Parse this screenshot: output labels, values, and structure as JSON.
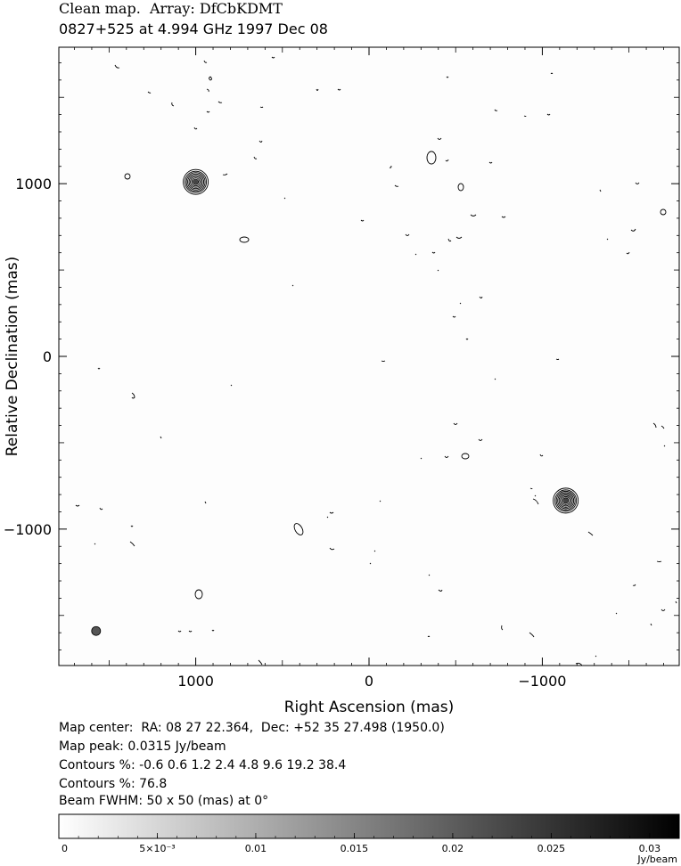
{
  "header": {
    "line1": "Clean map.  Array: DfCbKDMT",
    "line2": "0827+525 at 4.994 GHz 1997 Dec 08"
  },
  "footer": {
    "map_center": "Map center:  RA: 08 27 22.364,  Dec: +52 35 27.498 (1950.0)",
    "map_peak": "Map peak: 0.0315 Jy/beam",
    "contours_1": "Contours %: -0.6 0.6 1.2 2.4 4.8 9.6 19.2 38.4",
    "contours_2": "Contours %: 76.8",
    "beam_fwhm": "Beam FWHM: 50 x 50 (mas) at 0°"
  },
  "colors": {
    "axes": "#000000",
    "background": "#ffffff"
  },
  "chart_data": {
    "type": "heatmap",
    "xlabel": "Right Ascension  (mas)",
    "ylabel": "Relative Declination  (mas)",
    "xlim": [
      1790,
      -1790
    ],
    "ylim": [
      -1790,
      1790
    ],
    "x_ticks": [
      1000,
      0,
      -1000
    ],
    "y_ticks": [
      1000,
      0,
      -1000
    ],
    "x_tick_labels": [
      "1000",
      "0",
      "−1000"
    ],
    "y_tick_labels": [
      "1000",
      "0",
      "−1000"
    ],
    "grid": false,
    "peak_value_jy_per_beam": 0.0315,
    "contour_levels_percent": [
      -0.6,
      0.6,
      1.2,
      2.4,
      4.8,
      9.6,
      19.2,
      38.4,
      76.8
    ],
    "beam_fwhm_mas": [
      50,
      50
    ],
    "beam_pa_deg": 0,
    "sources": [
      {
        "x": 1000,
        "y": 1010
      },
      {
        "x": -1135,
        "y": -835
      }
    ],
    "beam_position": {
      "x": 1575,
      "y": -1590
    },
    "colorbar": {
      "range": [
        0,
        0.0315
      ],
      "tick_values": [
        0,
        0.005,
        0.01,
        0.015,
        0.02,
        0.025,
        0.03
      ],
      "tick_labels": [
        "0",
        "5×10⁻³",
        "0.01",
        "0.015",
        "0.02",
        "0.025",
        "0.03"
      ],
      "unit": "Jy/beam"
    }
  }
}
